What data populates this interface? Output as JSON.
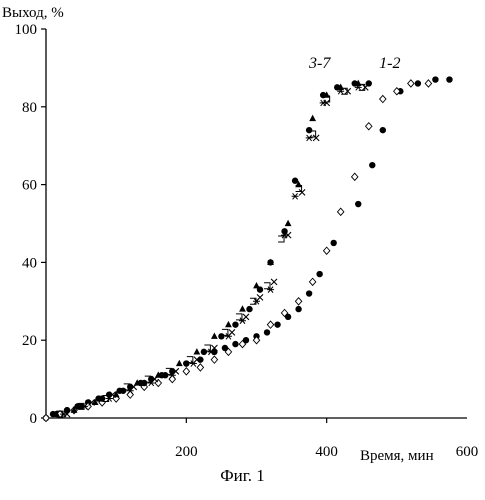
{
  "chart_data": {
    "type": "scatter",
    "title": "",
    "ylabel": "Выход, %",
    "xlabel": "Время, мин",
    "xlim": [
      0,
      600
    ],
    "ylim": [
      0,
      100
    ],
    "x_ticks": [
      200,
      400,
      600
    ],
    "y_ticks": [
      0,
      20,
      40,
      60,
      80,
      100
    ],
    "grid": false,
    "annotations": [
      {
        "text": "3-7",
        "x": 390,
        "y": 90
      },
      {
        "text": "1-2",
        "x": 490,
        "y": 90
      }
    ],
    "series": [
      {
        "name": "",
        "marker": "filled-circle",
        "points": [
          [
            0,
            0
          ],
          [
            15,
            1
          ],
          [
            30,
            2
          ],
          [
            45,
            3
          ],
          [
            60,
            4
          ],
          [
            75,
            5
          ],
          [
            90,
            6
          ],
          [
            105,
            7
          ],
          [
            120,
            8
          ],
          [
            135,
            9
          ],
          [
            150,
            10
          ],
          [
            165,
            11
          ],
          [
            180,
            12
          ],
          [
            200,
            14
          ],
          [
            220,
            15
          ],
          [
            240,
            17
          ],
          [
            255,
            18
          ],
          [
            270,
            19
          ],
          [
            285,
            20
          ],
          [
            300,
            21
          ],
          [
            315,
            22
          ],
          [
            330,
            24
          ],
          [
            345,
            26
          ],
          [
            360,
            28
          ],
          [
            375,
            32
          ],
          [
            390,
            37
          ],
          [
            410,
            45
          ],
          [
            445,
            55
          ],
          [
            465,
            65
          ],
          [
            480,
            74
          ],
          [
            505,
            84
          ],
          [
            530,
            86
          ],
          [
            555,
            87
          ],
          [
            575,
            87
          ]
        ]
      },
      {
        "name": "",
        "marker": "open-diamond",
        "points": [
          [
            0,
            0
          ],
          [
            20,
            1
          ],
          [
            40,
            2
          ],
          [
            60,
            3
          ],
          [
            80,
            4
          ],
          [
            100,
            5
          ],
          [
            120,
            6
          ],
          [
            140,
            8
          ],
          [
            160,
            9
          ],
          [
            180,
            10
          ],
          [
            200,
            12
          ],
          [
            220,
            13
          ],
          [
            240,
            15
          ],
          [
            260,
            17
          ],
          [
            280,
            19
          ],
          [
            300,
            20
          ],
          [
            320,
            24
          ],
          [
            340,
            27
          ],
          [
            360,
            30
          ],
          [
            380,
            35
          ],
          [
            400,
            43
          ],
          [
            420,
            53
          ],
          [
            440,
            62
          ],
          [
            460,
            75
          ],
          [
            480,
            82
          ],
          [
            500,
            84
          ],
          [
            520,
            86
          ],
          [
            545,
            86
          ]
        ]
      },
      {
        "name": "",
        "marker": "filled-circle",
        "points": [
          [
            10,
            1
          ],
          [
            30,
            2
          ],
          [
            50,
            3
          ],
          [
            80,
            5
          ],
          [
            110,
            7
          ],
          [
            140,
            9
          ],
          [
            170,
            11
          ],
          [
            200,
            14
          ],
          [
            225,
            17
          ],
          [
            250,
            21
          ],
          [
            270,
            24
          ],
          [
            290,
            28
          ],
          [
            305,
            33
          ],
          [
            320,
            40
          ],
          [
            340,
            48
          ],
          [
            355,
            61
          ],
          [
            375,
            74
          ],
          [
            395,
            83
          ],
          [
            415,
            85
          ],
          [
            440,
            86
          ],
          [
            460,
            86
          ]
        ]
      },
      {
        "name": "",
        "marker": "filled-triangle",
        "points": [
          [
            15,
            1
          ],
          [
            40,
            2
          ],
          [
            70,
            4
          ],
          [
            100,
            6
          ],
          [
            130,
            9
          ],
          [
            160,
            11
          ],
          [
            190,
            14
          ],
          [
            215,
            17
          ],
          [
            240,
            21
          ],
          [
            260,
            24
          ],
          [
            280,
            28
          ],
          [
            300,
            34
          ],
          [
            320,
            40
          ],
          [
            345,
            50
          ],
          [
            360,
            60
          ],
          [
            380,
            77
          ],
          [
            400,
            83
          ],
          [
            420,
            85
          ],
          [
            445,
            86
          ]
        ]
      },
      {
        "name": "",
        "marker": "open-square",
        "points": [
          [
            20,
            1
          ],
          [
            50,
            3
          ],
          [
            85,
            5
          ],
          [
            115,
            8
          ],
          [
            145,
            10
          ],
          [
            175,
            12
          ],
          [
            205,
            15
          ],
          [
            230,
            18
          ],
          [
            255,
            22
          ],
          [
            275,
            26
          ],
          [
            295,
            30
          ],
          [
            315,
            34
          ],
          [
            335,
            46
          ],
          [
            360,
            59
          ],
          [
            380,
            73
          ],
          [
            400,
            82
          ],
          [
            425,
            84
          ],
          [
            450,
            85
          ]
        ]
      },
      {
        "name": "",
        "marker": "asterisk",
        "points": [
          [
            25,
            1
          ],
          [
            55,
            3
          ],
          [
            90,
            5
          ],
          [
            120,
            7
          ],
          [
            150,
            9
          ],
          [
            180,
            11
          ],
          [
            210,
            14
          ],
          [
            235,
            17
          ],
          [
            260,
            21
          ],
          [
            280,
            25
          ],
          [
            300,
            30
          ],
          [
            320,
            33
          ],
          [
            340,
            47
          ],
          [
            355,
            57
          ],
          [
            375,
            72
          ],
          [
            395,
            81
          ],
          [
            420,
            84
          ],
          [
            445,
            85
          ]
        ]
      },
      {
        "name": "",
        "marker": "cross",
        "points": [
          [
            30,
            1
          ],
          [
            65,
            4
          ],
          [
            95,
            6
          ],
          [
            125,
            8
          ],
          [
            155,
            10
          ],
          [
            185,
            12
          ],
          [
            215,
            15
          ],
          [
            240,
            18
          ],
          [
            265,
            22
          ],
          [
            285,
            26
          ],
          [
            305,
            31
          ],
          [
            325,
            35
          ],
          [
            345,
            47
          ],
          [
            365,
            58
          ],
          [
            385,
            72
          ],
          [
            400,
            81
          ],
          [
            430,
            84
          ],
          [
            455,
            85
          ]
        ]
      }
    ]
  },
  "figure_caption": "Фиг. 1"
}
